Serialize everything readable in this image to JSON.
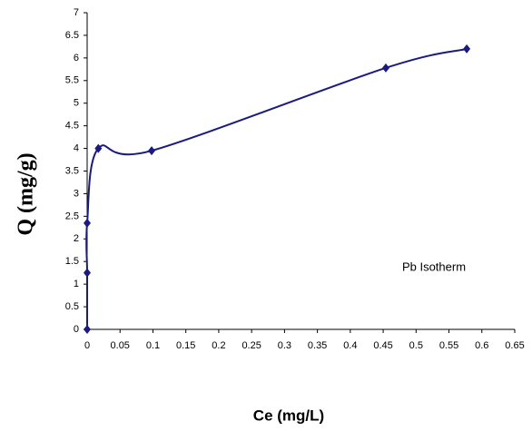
{
  "chart_data": {
    "type": "line",
    "x_label": "Ce (mg/L)",
    "y_label": "Q (mg/g)",
    "annotation": "Pb Isotherm",
    "x": [
      0,
      0,
      0,
      0.017,
      0.098,
      0.454,
      0.577
    ],
    "values": [
      0,
      1.25,
      2.35,
      4.0,
      3.95,
      5.78,
      6.2
    ],
    "color": "#1a1a80",
    "xlim": [
      0,
      0.65
    ],
    "xticks": [
      0,
      0.05,
      0.1,
      0.15,
      0.2,
      0.25,
      0.3,
      0.35,
      0.4,
      0.45,
      0.5,
      0.55,
      0.6,
      0.65
    ],
    "ylim": [
      0,
      7
    ],
    "yticks": [
      0,
      0.5,
      1,
      1.5,
      2,
      2.5,
      3,
      3.5,
      4,
      4.5,
      5,
      5.5,
      6,
      6.5,
      7
    ],
    "grid": false,
    "smooth": true
  }
}
